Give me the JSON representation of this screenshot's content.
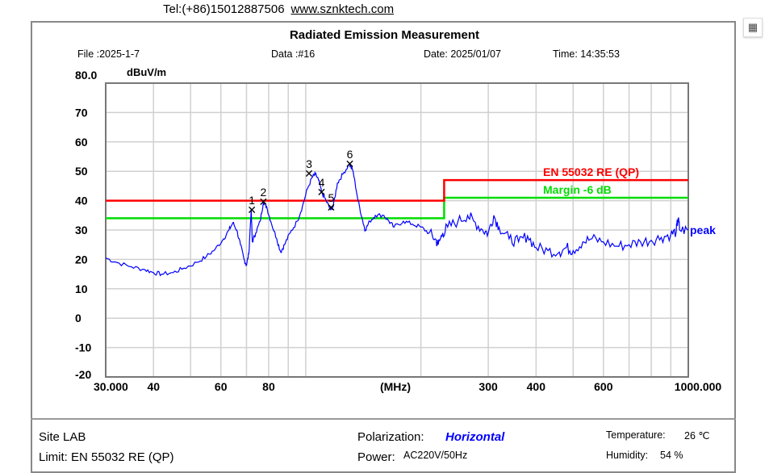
{
  "header": {
    "tel": "Tel:(+86)15012887506",
    "url": "www.sznktech.com"
  },
  "report": {
    "title": "Radiated Emission Measurement",
    "file": "File :2025-1-7",
    "data_no": "Data :#16",
    "date": "Date: 2025/01/07",
    "time": "Time: 14:35:53"
  },
  "footer": {
    "site": "Site  LAB",
    "limit": "Limit:  EN 55032 RE (QP)",
    "polarization_label": "Polarization:",
    "polarization_value": "Horizontal",
    "power_label": "Power:",
    "power_value": "AC220V/50Hz",
    "temperature_label": "Temperature:",
    "temperature_value": "26 ℃",
    "humidity_label": "Humidity:",
    "humidity_value": "54 %"
  },
  "side_icon": "fit-page-icon",
  "chart_data": {
    "type": "line",
    "ylabel": "dBuV/m",
    "xlabel": "(MHz)",
    "x_scale": "log",
    "xlim": [
      30,
      1000
    ],
    "ylim": [
      -20,
      80
    ],
    "grid": true,
    "y_ticks": [
      "80.0",
      "70",
      "60",
      "50",
      "40",
      "30",
      "20",
      "10",
      "0",
      "-10",
      "-20"
    ],
    "x_tick_labels": [
      {
        "value": 30,
        "label": "30.000"
      },
      {
        "value": 40,
        "label": "40"
      },
      {
        "value": 60,
        "label": "60"
      },
      {
        "value": 80,
        "label": "80"
      },
      {
        "value": 300,
        "label": "300"
      },
      {
        "value": 400,
        "label": "400"
      },
      {
        "value": 600,
        "label": "600"
      },
      {
        "value": 1000,
        "label": "1000.000"
      }
    ],
    "colors": {
      "trace": "#0000ff",
      "limit": "#ff0000",
      "margin": "#00dd00",
      "grid": "#d0d0d0"
    },
    "limit": {
      "name": "EN 55032 RE (QP)",
      "points": [
        [
          30,
          40
        ],
        [
          230,
          40
        ],
        [
          230,
          47
        ],
        [
          1000,
          47
        ]
      ]
    },
    "margin": {
      "name": "Margin -6 dB",
      "points": [
        [
          30,
          34
        ],
        [
          230,
          34
        ],
        [
          230,
          41
        ],
        [
          1000,
          41
        ]
      ]
    },
    "trace_label": "peak",
    "trace": [
      [
        30,
        20.5
      ],
      [
        32,
        19
      ],
      [
        35,
        17.5
      ],
      [
        38,
        16.5
      ],
      [
        40,
        15.5
      ],
      [
        42,
        15
      ],
      [
        45,
        15.5
      ],
      [
        48,
        17
      ],
      [
        52,
        19
      ],
      [
        55,
        21
      ],
      [
        58,
        23.5
      ],
      [
        61,
        27
      ],
      [
        63,
        30
      ],
      [
        64.5,
        32.5
      ],
      [
        66,
        30
      ],
      [
        67.5,
        25
      ],
      [
        69,
        20
      ],
      [
        70,
        18
      ],
      [
        71,
        22
      ],
      [
        72,
        37
      ],
      [
        72.5,
        26
      ],
      [
        74,
        29
      ],
      [
        76,
        33
      ],
      [
        77.5,
        39.5
      ],
      [
        79,
        38
      ],
      [
        81,
        33
      ],
      [
        84,
        27
      ],
      [
        86,
        22.5
      ],
      [
        88,
        25
      ],
      [
        91,
        29
      ],
      [
        95,
        33
      ],
      [
        98,
        38
      ],
      [
        101,
        44
      ],
      [
        104,
        48
      ],
      [
        106,
        49
      ],
      [
        108,
        47
      ],
      [
        110,
        43
      ],
      [
        113,
        40
      ],
      [
        116,
        37
      ],
      [
        118,
        38
      ],
      [
        121,
        46
      ],
      [
        125,
        49
      ],
      [
        130,
        52.5
      ],
      [
        133,
        50
      ],
      [
        137,
        40
      ],
      [
        141,
        33
      ],
      [
        143,
        30
      ],
      [
        147,
        33
      ],
      [
        152,
        35
      ],
      [
        160,
        35
      ],
      [
        165,
        33
      ],
      [
        170,
        31
      ],
      [
        180,
        33
      ],
      [
        190,
        32
      ],
      [
        200,
        31
      ],
      [
        210,
        29
      ],
      [
        218,
        27
      ],
      [
        222,
        25
      ],
      [
        228,
        29
      ],
      [
        235,
        31
      ],
      [
        250,
        33
      ],
      [
        265,
        35
      ],
      [
        275,
        33
      ],
      [
        290,
        30
      ],
      [
        300,
        29
      ],
      [
        310,
        35
      ],
      [
        320,
        31
      ],
      [
        340,
        27
      ],
      [
        360,
        26
      ],
      [
        380,
        28
      ],
      [
        400,
        24
      ],
      [
        430,
        23
      ],
      [
        460,
        22.5
      ],
      [
        480,
        24
      ],
      [
        500,
        23
      ],
      [
        530,
        26
      ],
      [
        560,
        27
      ],
      [
        600,
        26
      ],
      [
        650,
        24.5
      ],
      [
        700,
        25
      ],
      [
        750,
        26
      ],
      [
        800,
        26.5
      ],
      [
        850,
        27.5
      ],
      [
        900,
        28.5
      ],
      [
        930,
        29.5
      ],
      [
        940,
        34
      ],
      [
        950,
        30
      ],
      [
        1000,
        30
      ]
    ],
    "markers": [
      {
        "label": "1",
        "freq": 72.3,
        "level": 36.9
      },
      {
        "label": "2",
        "freq": 77.5,
        "level": 39.6
      },
      {
        "label": "3",
        "freq": 102.0,
        "level": 49.2
      },
      {
        "label": "4",
        "freq": 110.0,
        "level": 42.9
      },
      {
        "label": "5",
        "freq": 116.5,
        "level": 37.7
      },
      {
        "label": "6",
        "freq": 130.4,
        "level": 52.5
      }
    ]
  }
}
